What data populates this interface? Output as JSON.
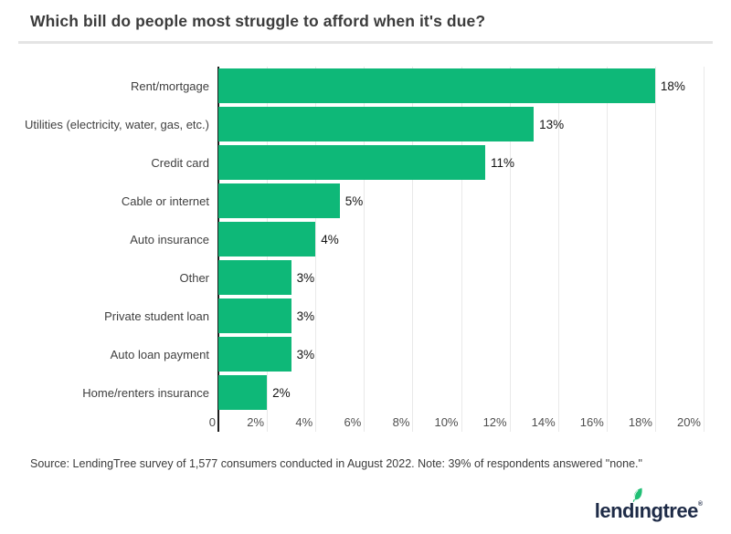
{
  "header": {
    "title": "Which bill do people most struggle to afford when it's due?"
  },
  "chart_data": {
    "type": "bar",
    "orientation": "horizontal",
    "title": "Which bill do people most struggle to afford when it's due?",
    "categories": [
      "Rent/mortgage",
      "Utilities (electricity, water, gas, etc.)",
      "Credit card",
      "Cable or internet",
      "Auto insurance",
      "Other",
      "Private student loan",
      "Auto loan payment",
      "Home/renters insurance"
    ],
    "values": [
      18,
      13,
      11,
      5,
      4,
      3,
      3,
      3,
      2
    ],
    "value_labels": [
      "18%",
      "13%",
      "11%",
      "5%",
      "4%",
      "3%",
      "3%",
      "3%",
      "2%"
    ],
    "x_ticks": [
      "0",
      "2%",
      "4%",
      "6%",
      "8%",
      "10%",
      "12%",
      "14%",
      "16%",
      "18%",
      "20%"
    ],
    "xlim": [
      0,
      20
    ],
    "xlabel": "",
    "ylabel": "",
    "grid": true,
    "legend": false,
    "bar_color": "#0eb878"
  },
  "footer": {
    "source_note": "Source: LendingTree survey of 1,577 consumers conducted in August 2022. Note: 39% of respondents answered \"none.\"",
    "logo": {
      "prefix": "lend",
      "dotless_i": "ı",
      "suffix": "ngtree",
      "registered_mark": "®",
      "text_color": "#1e2b47",
      "leaf_color": "#21bf75"
    }
  }
}
